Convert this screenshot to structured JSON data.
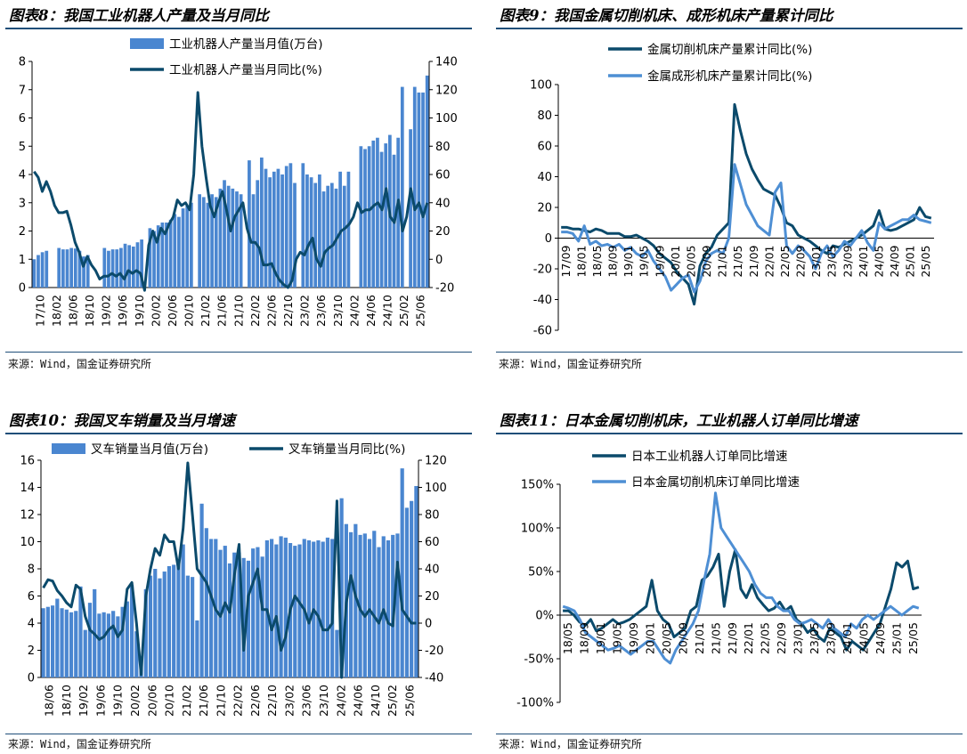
{
  "colors": {
    "dark": "#0b4a6b",
    "light": "#4e8fd4",
    "bar": "#4a86d0",
    "rule": "#1f4e79"
  },
  "panels": [
    {
      "title": "图表8：我国工业机器人产量及当月同比",
      "source": "来源：Wind，国金证券研究所",
      "chart_data": {
        "type": "bar+line",
        "dual_axis": true,
        "ylim": [
          0,
          8
        ],
        "yticks": [
          0,
          1,
          2,
          3,
          4,
          5,
          6,
          7,
          8
        ],
        "y2lim": [
          -20,
          140
        ],
        "y2ticks": [
          -20,
          0,
          20,
          40,
          60,
          80,
          100,
          120,
          140
        ],
        "xticklabels": [
          "17/10",
          "18/02",
          "18/06",
          "18/10",
          "19/02",
          "19/06",
          "19/10",
          "20/02",
          "20/06",
          "20/10",
          "21/02",
          "21/06",
          "21/10",
          "22/02",
          "22/06",
          "22/10",
          "23/02",
          "23/06",
          "23/10",
          "24/02",
          "24/06",
          "24/10",
          "25/02",
          "25/06"
        ],
        "legend": [
          "工业机器人产量当月值(万台)",
          "工业机器人产量当月同比(%)"
        ],
        "series": [
          {
            "name": "工业机器人产量当月值(万台)",
            "kind": "bar",
            "axis": "left",
            "values": [
              1.0,
              1.15,
              1.25,
              1.3,
              0,
              0,
              1.4,
              1.35,
              1.35,
              1.4,
              1.38,
              1.3,
              1.1,
              1.15,
              0,
              0,
              0,
              1.4,
              1.3,
              1.35,
              1.35,
              1.4,
              1.55,
              1.5,
              1.45,
              1.6,
              1.7,
              0,
              2.1,
              2.0,
              2.2,
              2.3,
              2.3,
              2.4,
              2.6,
              2.5,
              2.8,
              2.9,
              3.0,
              0,
              3.3,
              3.2,
              3.0,
              3.3,
              3.2,
              3.5,
              3.8,
              3.6,
              3.5,
              3.4,
              3.3,
              0,
              4.5,
              3.3,
              3.8,
              4.6,
              4.2,
              3.9,
              4.1,
              4.2,
              4.0,
              4.3,
              4.4,
              3.7,
              0,
              4.4,
              4.0,
              3.9,
              3.7,
              4.0,
              3.4,
              3.6,
              3.7,
              3.5,
              4.1,
              3.6,
              4.1,
              0,
              0,
              5.0,
              4.9,
              5.0,
              5.2,
              5.3,
              4.8,
              5.1,
              5.4,
              4.7,
              5.3,
              7.1,
              0,
              5.6,
              7.1,
              6.9,
              6.9,
              7.5
            ]
          },
          {
            "name": "工业机器人产量当月同比(%)",
            "kind": "line",
            "axis": "right",
            "values": [
              62,
              58,
              48,
              55,
              48,
              38,
              33,
              33,
              34,
              24,
              12,
              5,
              -5,
              2,
              -4,
              -8,
              -14,
              -12,
              -12,
              -10,
              -12,
              -10,
              -14,
              -8,
              -10,
              -8,
              -10,
              -22,
              10,
              20,
              12,
              22,
              18,
              25,
              30,
              42,
              38,
              40,
              35,
              60,
              118,
              80,
              58,
              38,
              30,
              40,
              48,
              35,
              20,
              30,
              35,
              40,
              22,
              12,
              12,
              8,
              -4,
              -4,
              -3,
              -10,
              -15,
              -18,
              -20,
              -15,
              0,
              5,
              3,
              10,
              15,
              0,
              -5,
              5,
              8,
              10,
              15,
              20,
              22,
              25,
              30,
              40,
              33,
              35,
              35,
              38,
              40,
              35,
              50,
              30,
              26,
              42,
              20,
              30,
              50,
              35,
              40,
              30,
              40
            ]
          }
        ]
      }
    },
    {
      "title": "图表9：我国金属切削机床、成形机床产量累计同比",
      "source": "来源：Wind，国金证券研究所",
      "chart_data": {
        "type": "line",
        "ylim": [
          -60,
          100
        ],
        "yticks": [
          -60,
          -40,
          -20,
          0,
          20,
          40,
          60,
          80,
          100
        ],
        "xticklabels": [
          "17/09",
          "18/01",
          "18/05",
          "18/09",
          "19/01",
          "19/05",
          "19/09",
          "20/01",
          "20/05",
          "20/09",
          "21/01",
          "21/05",
          "21/09",
          "22/01",
          "22/05",
          "22/09",
          "23/01",
          "23/05",
          "23/09",
          "24/01",
          "24/05",
          "24/09",
          "25/01",
          "25/05"
        ],
        "legend": [
          "金属切削机床产量累计同比(%)",
          "金属成形机床产量累计同比(%)"
        ],
        "series": [
          {
            "name": "金属切削机床产量累计同比(%)",
            "color": "dark",
            "values": [
              7,
              7,
              6,
              6,
              5,
              4,
              6,
              5,
              3,
              3,
              3,
              1,
              1,
              2,
              0,
              -2,
              -5,
              -10,
              -13,
              -16,
              -22,
              -26,
              -30,
              -43,
              -18,
              -10,
              -6,
              2,
              6,
              10,
              87,
              70,
              55,
              45,
              38,
              32,
              30,
              28,
              20,
              10,
              8,
              2,
              0,
              -2,
              -5,
              -8,
              -10,
              -5,
              -6,
              -4,
              -2,
              0,
              2,
              5,
              8,
              18,
              6,
              5,
              6,
              8,
              10,
              12,
              20,
              14,
              13
            ]
          },
          {
            "name": "金属成形机床产量累计同比(%)",
            "color": "light",
            "values": [
              4,
              4,
              3,
              -2,
              8,
              -4,
              -2,
              -5,
              -4,
              -6,
              -4,
              -8,
              -6,
              -10,
              -12,
              -8,
              -15,
              -20,
              -25,
              -34,
              -30,
              -26,
              -24,
              -35,
              -28,
              -15,
              -10,
              -8,
              -10,
              0,
              48,
              35,
              22,
              15,
              8,
              5,
              2,
              30,
              36,
              -5,
              -10,
              -5,
              -8,
              -12,
              -20,
              -10,
              -5,
              -12,
              -8,
              -2,
              -5,
              0,
              5,
              -3,
              -8,
              10,
              6,
              8,
              10,
              12,
              12,
              15,
              12,
              11,
              10
            ]
          }
        ]
      }
    },
    {
      "title": "图表10：我国叉车销量及当月增速",
      "source": "来源：Wind，国金证券研究所",
      "chart_data": {
        "type": "bar+line",
        "dual_axis": true,
        "ylim": [
          0,
          16
        ],
        "yticks": [
          0,
          2,
          4,
          6,
          8,
          10,
          12,
          14,
          16
        ],
        "y2lim": [
          -40,
          120
        ],
        "y2ticks": [
          -40,
          -20,
          0,
          20,
          40,
          60,
          80,
          100,
          120
        ],
        "xticklabels": [
          "18/06",
          "18/10",
          "19/02",
          "19/06",
          "19/10",
          "20/02",
          "20/06",
          "20/10",
          "21/02",
          "21/06",
          "21/10",
          "22/02",
          "22/06",
          "22/10",
          "23/02",
          "23/06",
          "23/10",
          "24/02",
          "24/06",
          "24/10",
          "25/02",
          "25/06"
        ],
        "legend": [
          "叉车销量当月值(万台)",
          "叉车销量当月同比(%)"
        ],
        "series": [
          {
            "name": "叉车销量当月值(万台)",
            "kind": "bar",
            "axis": "left",
            "values": [
              5.1,
              5.2,
              5.3,
              5.8,
              5.1,
              5.0,
              4.8,
              4.9,
              6.7,
              3.5,
              5.5,
              6.5,
              4.7,
              4.8,
              4.7,
              4.9,
              4.5,
              5.2,
              5.6,
              6.8,
              3.4,
              1.5,
              6.5,
              7.5,
              8.0,
              7.3,
              7.8,
              8.2,
              8.3,
              8.6,
              9.8,
              7.5,
              7.4,
              4.2,
              12.8,
              11.0,
              10.2,
              10.2,
              9.4,
              9.7,
              8.4,
              9.2,
              9.2,
              8.8,
              8.6,
              9.5,
              9.6,
              8.9,
              10.1,
              10.2,
              9.8,
              10.4,
              10.3,
              9.9,
              9.7,
              9.8,
              10.2,
              10.1,
              10.0,
              10.1,
              10.0,
              10.3,
              10.2,
              3.5,
              13.2,
              11.3,
              10.7,
              11.3,
              10.5,
              10.6,
              10.2,
              10.8,
              9.6,
              10.4,
              10.1,
              10.5,
              10.6,
              15.4,
              12.5,
              13.0,
              14.1
            ]
          },
          {
            "name": "叉车销量当月同比(%)",
            "kind": "line",
            "axis": "right",
            "values": [
              26,
              32,
              31,
              24,
              20,
              15,
              12,
              28,
              25,
              5,
              -5,
              -8,
              -12,
              -10,
              -5,
              -2,
              -10,
              -5,
              25,
              30,
              0,
              -38,
              20,
              40,
              55,
              50,
              65,
              60,
              60,
              40,
              70,
              118,
              80,
              40,
              35,
              30,
              20,
              10,
              5,
              15,
              8,
              35,
              58,
              -20,
              20,
              30,
              40,
              10,
              10,
              -5,
              5,
              -20,
              -10,
              10,
              20,
              15,
              10,
              0,
              10,
              5,
              -5,
              -5,
              0,
              90,
              -40,
              15,
              35,
              20,
              10,
              5,
              10,
              5,
              0,
              10,
              0,
              -2,
              45,
              10,
              5,
              0,
              0
            ]
          }
        ]
      }
    },
    {
      "title": "图表11：日本金属切削机床，工业机器人订单同比增速",
      "source": "来源：Wind，国金证券研究所",
      "chart_data": {
        "type": "line",
        "ylim": [
          -100,
          150
        ],
        "yticks": [
          -100,
          -50,
          0,
          50,
          100,
          150
        ],
        "ytickfmt": "percent",
        "xticklabels": [
          "18/05",
          "18/09",
          "19/01",
          "19/05",
          "19/09",
          "20/01",
          "20/05",
          "20/09",
          "21/01",
          "21/05",
          "21/09",
          "22/01",
          "22/05",
          "22/09",
          "23/01",
          "23/05",
          "23/09",
          "24/01",
          "24/05",
          "24/09",
          "25/01",
          "25/05"
        ],
        "legend": [
          "日本工业机器人订单同比增速",
          "日本金属切削机床订单同比增速"
        ],
        "series": [
          {
            "name": "日本工业机器人订单同比增速",
            "color": "dark",
            "values": [
              5,
              5,
              0,
              -8,
              -12,
              -5,
              -18,
              -15,
              -10,
              -5,
              -10,
              -8,
              -5,
              0,
              5,
              10,
              40,
              5,
              -5,
              -10,
              -25,
              -20,
              -15,
              5,
              10,
              40,
              45,
              55,
              70,
              10,
              50,
              75,
              30,
              20,
              35,
              20,
              12,
              5,
              8,
              15,
              5,
              10,
              -5,
              -10,
              -20,
              -15,
              -25,
              -30,
              -15,
              -20,
              -25,
              -40,
              -30,
              -35,
              -40,
              -30,
              -20,
              -10,
              10,
              30,
              60,
              55,
              62,
              30,
              32
            ]
          },
          {
            "name": "日本金属切削机床订单同比增速",
            "color": "light",
            "values": [
              10,
              8,
              5,
              -5,
              -20,
              -25,
              -30,
              -35,
              -40,
              -38,
              -35,
              -40,
              -45,
              -40,
              -35,
              -30,
              -30,
              -40,
              -50,
              -55,
              -40,
              -30,
              -20,
              -10,
              5,
              40,
              70,
              140,
              100,
              90,
              80,
              70,
              60,
              50,
              35,
              25,
              20,
              20,
              10,
              5,
              5,
              -5,
              -10,
              -8,
              -5,
              -10,
              -15,
              -5,
              -15,
              -20,
              -25,
              -10,
              -15,
              -5,
              0,
              -5,
              0,
              5,
              10,
              5,
              0,
              5,
              10,
              8
            ]
          }
        ]
      }
    }
  ]
}
